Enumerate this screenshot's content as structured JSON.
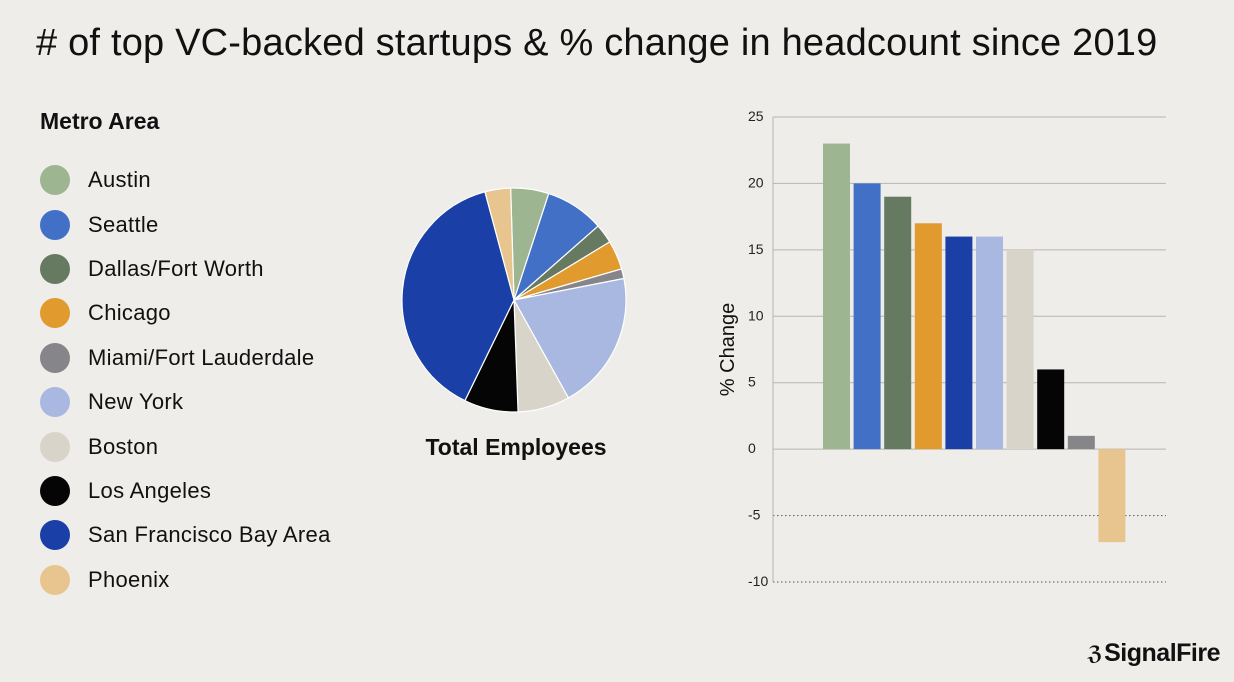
{
  "title": "# of top VC-backed startups & % change in headcount since 2019",
  "brand": {
    "mark": "ℨ",
    "name": "SignalFire"
  },
  "chart_data": [
    {
      "type": "pie",
      "title": "Total Employees",
      "legend_title": "Metro Area",
      "legend_placement": "left",
      "slices": [
        {
          "name": "Austin",
          "value": 5.5,
          "color": "#9db590"
        },
        {
          "name": "Seattle",
          "value": 8.5,
          "color": "#4170c6"
        },
        {
          "name": "Dallas/Fort Worth",
          "value": 2.8,
          "color": "#667a61"
        },
        {
          "name": "Chicago",
          "value": 4.2,
          "color": "#e09a2e"
        },
        {
          "name": "Miami/Fort Lauderdale",
          "value": 1.4,
          "color": "#85858a"
        },
        {
          "name": "New York",
          "value": 20.0,
          "color": "#a8b8e0"
        },
        {
          "name": "Boston",
          "value": 7.5,
          "color": "#d8d4ca"
        },
        {
          "name": "Los Angeles",
          "value": 7.8,
          "color": "#050505"
        },
        {
          "name": "San Francisco Bay Area",
          "value": 38.6,
          "color": "#1a3fa6"
        },
        {
          "name": "Phoenix",
          "value": 3.7,
          "color": "#e8c58e"
        }
      ]
    },
    {
      "type": "bar",
      "ylabel": "% Change",
      "ylim": [
        -10,
        25
      ],
      "yticks": [
        25,
        20,
        15,
        10,
        5,
        0,
        -5,
        -10
      ],
      "grid": true,
      "bars": [
        {
          "category": "Austin",
          "value": 23,
          "color": "#9db590"
        },
        {
          "category": "Seattle",
          "value": 20,
          "color": "#4170c6"
        },
        {
          "category": "Dallas/Fort Worth",
          "value": 19,
          "color": "#667a61"
        },
        {
          "category": "Chicago",
          "value": 17,
          "color": "#e09a2e"
        },
        {
          "category": "San Francisco Bay Area",
          "value": 16,
          "color": "#1a3fa6"
        },
        {
          "category": "New York",
          "value": 16,
          "color": "#a8b8e0"
        },
        {
          "category": "Boston",
          "value": 15,
          "color": "#d8d4ca"
        },
        {
          "category": "Los Angeles",
          "value": 6,
          "color": "#050505"
        },
        {
          "category": "Miami/Fort Lauderdale",
          "value": 1,
          "color": "#85858a"
        },
        {
          "category": "Phoenix",
          "value": -7,
          "color": "#e8c58e"
        }
      ]
    }
  ]
}
